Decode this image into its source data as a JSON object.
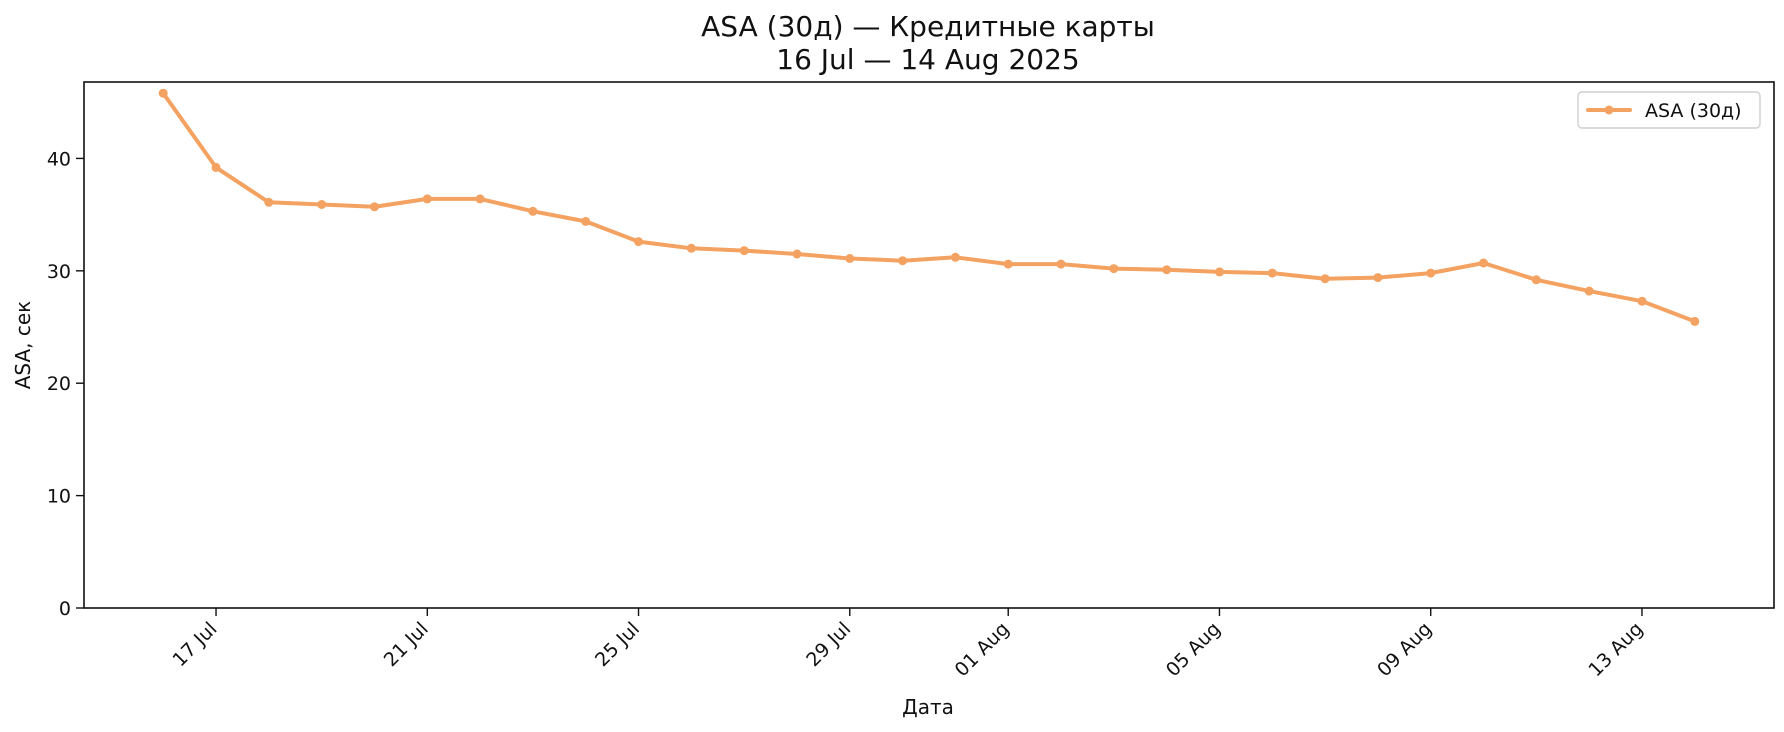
{
  "chart_data": {
    "type": "line",
    "title": "ASA (30д) — Кредитные карты",
    "subtitle": "16 Jul — 14 Aug 2025",
    "xlabel": "Дата",
    "ylabel": "ASA, сек",
    "x": [
      "2025-07-16",
      "2025-07-17",
      "2025-07-18",
      "2025-07-19",
      "2025-07-20",
      "2025-07-21",
      "2025-07-22",
      "2025-07-23",
      "2025-07-24",
      "2025-07-25",
      "2025-07-26",
      "2025-07-27",
      "2025-07-28",
      "2025-07-29",
      "2025-07-30",
      "2025-07-31",
      "2025-08-01",
      "2025-08-02",
      "2025-08-03",
      "2025-08-04",
      "2025-08-05",
      "2025-08-06",
      "2025-08-07",
      "2025-08-08",
      "2025-08-09",
      "2025-08-10",
      "2025-08-11",
      "2025-08-12",
      "2025-08-13",
      "2025-08-14"
    ],
    "series": [
      {
        "name": "ASA (30д)",
        "color": "#f4a261",
        "values": [
          45.8,
          39.2,
          36.1,
          35.9,
          35.7,
          36.4,
          36.4,
          35.3,
          34.4,
          32.6,
          32.0,
          31.8,
          31.5,
          31.1,
          30.9,
          31.2,
          30.6,
          30.6,
          30.2,
          30.1,
          29.9,
          29.8,
          29.3,
          29.4,
          29.8,
          30.7,
          29.2,
          28.2,
          27.3,
          25.5
        ]
      }
    ],
    "xlim": [
      "2025-07-14 12:00",
      "2025-08-15 12:00"
    ],
    "ylim": [
      0,
      46.8
    ],
    "xticks": [
      {
        "date": "2025-07-17",
        "label": "17 Jul"
      },
      {
        "date": "2025-07-21",
        "label": "21 Jul"
      },
      {
        "date": "2025-07-25",
        "label": "25 Jul"
      },
      {
        "date": "2025-07-29",
        "label": "29 Jul"
      },
      {
        "date": "2025-08-01",
        "label": "01 Aug"
      },
      {
        "date": "2025-08-05",
        "label": "05 Aug"
      },
      {
        "date": "2025-08-09",
        "label": "09 Aug"
      },
      {
        "date": "2025-08-13",
        "label": "13 Aug"
      }
    ],
    "yticks": [
      0,
      10,
      20,
      30,
      40
    ],
    "grid": false,
    "legend": "top-right"
  }
}
